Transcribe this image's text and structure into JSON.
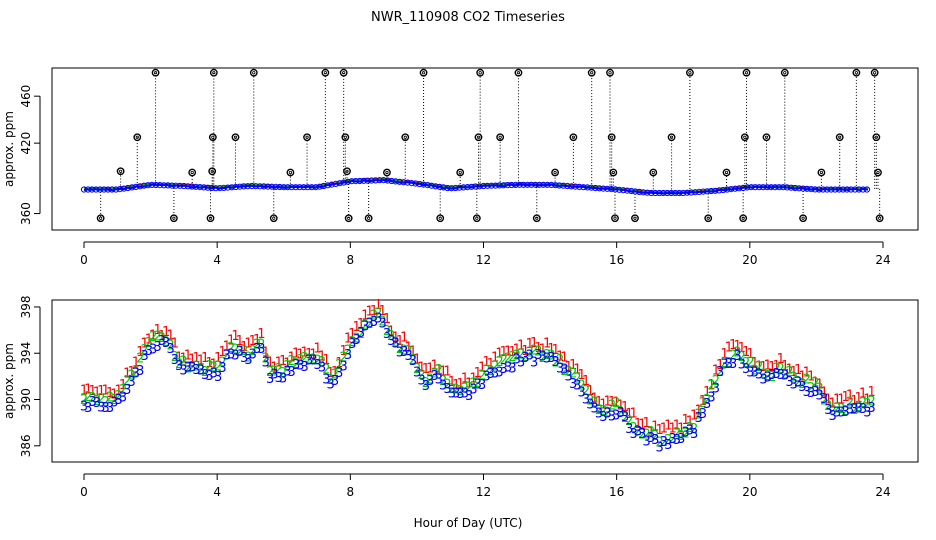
{
  "chart_data": [
    {
      "type": "scatter",
      "title": "NWR_110908  CO2 Timeseries",
      "ylabel": "approx. ppm",
      "xlabel": "",
      "xlim": [
        0,
        24
      ],
      "ylim": [
        346,
        484
      ],
      "x_ticks": [
        0,
        4,
        8,
        12,
        16,
        20,
        24
      ],
      "y_ticks": [
        360,
        420,
        460
      ],
      "series": [
        {
          "name": "1",
          "color": "#ff0000"
        },
        {
          "name": "2",
          "color": "#00cc00"
        },
        {
          "name": "3",
          "color": "#0000ff"
        }
      ],
      "baseline": [
        [
          0,
          381
        ],
        [
          1,
          381
        ],
        [
          1.5,
          383
        ],
        [
          2,
          385
        ],
        [
          3,
          384
        ],
        [
          4,
          382
        ],
        [
          5,
          384
        ],
        [
          6,
          383
        ],
        [
          7,
          383
        ],
        [
          8,
          388
        ],
        [
          9,
          389
        ],
        [
          10,
          386
        ],
        [
          11,
          382
        ],
        [
          12,
          384
        ],
        [
          13,
          385
        ],
        [
          14,
          385
        ],
        [
          15,
          383
        ],
        [
          16,
          381
        ],
        [
          17,
          378
        ],
        [
          18,
          378
        ],
        [
          19,
          380
        ],
        [
          20,
          383
        ],
        [
          21,
          383
        ],
        [
          22,
          381
        ],
        [
          23,
          381
        ],
        [
          23.6,
          381
        ]
      ],
      "spikes": [
        [
          0.5,
          356
        ],
        [
          1.1,
          396
        ],
        [
          1.6,
          425
        ],
        [
          2.15,
          480
        ],
        [
          2.7,
          356
        ],
        [
          3.25,
          395
        ],
        [
          3.8,
          356
        ],
        [
          3.85,
          396
        ],
        [
          3.87,
          425
        ],
        [
          3.9,
          480
        ],
        [
          4.55,
          425
        ],
        [
          5.1,
          480
        ],
        [
          5.7,
          356
        ],
        [
          6.2,
          395
        ],
        [
          6.7,
          425
        ],
        [
          7.25,
          480
        ],
        [
          7.8,
          480
        ],
        [
          7.85,
          425
        ],
        [
          7.9,
          396
        ],
        [
          7.95,
          356
        ],
        [
          8.55,
          356
        ],
        [
          9.1,
          395
        ],
        [
          9.65,
          425
        ],
        [
          10.2,
          480
        ],
        [
          10.7,
          356
        ],
        [
          11.3,
          395
        ],
        [
          11.8,
          356
        ],
        [
          11.85,
          425
        ],
        [
          11.9,
          480
        ],
        [
          12.5,
          425
        ],
        [
          13.05,
          480
        ],
        [
          13.6,
          356
        ],
        [
          14.15,
          395
        ],
        [
          14.7,
          425
        ],
        [
          15.25,
          480
        ],
        [
          15.8,
          480
        ],
        [
          15.85,
          425
        ],
        [
          15.9,
          395
        ],
        [
          15.95,
          356
        ],
        [
          16.55,
          356
        ],
        [
          17.1,
          395
        ],
        [
          17.65,
          425
        ],
        [
          18.2,
          480
        ],
        [
          18.75,
          356
        ],
        [
          19.3,
          395
        ],
        [
          19.8,
          356
        ],
        [
          19.85,
          425
        ],
        [
          19.9,
          480
        ],
        [
          20.5,
          425
        ],
        [
          21.05,
          480
        ],
        [
          21.6,
          356
        ],
        [
          22.15,
          395
        ],
        [
          22.7,
          425
        ],
        [
          23.2,
          480
        ],
        [
          23.75,
          480
        ],
        [
          23.8,
          425
        ],
        [
          23.85,
          395
        ],
        [
          23.9,
          356
        ]
      ]
    },
    {
      "type": "scatter",
      "title": "",
      "ylabel": "approx. ppm",
      "xlabel": "Hour of Day (UTC)",
      "xlim": [
        0,
        24
      ],
      "ylim": [
        384.6,
        398.6
      ],
      "x_ticks": [
        0,
        4,
        8,
        12,
        16,
        20,
        24
      ],
      "y_ticks": [
        386,
        390,
        394,
        398
      ],
      "series": [
        {
          "name": "1",
          "color": "#ff0000",
          "offset": 0.9
        },
        {
          "name": "2",
          "color": "#00cc00",
          "offset": 0.25
        },
        {
          "name": "3",
          "color": "#0000ff",
          "offset": -0.2
        }
      ],
      "base_curve": [
        [
          0,
          389.5
        ],
        [
          0.5,
          389.3
        ],
        [
          1,
          389.6
        ],
        [
          1.5,
          391.5
        ],
        [
          2,
          394.5
        ],
        [
          2.5,
          394.6
        ],
        [
          2.9,
          392.5
        ],
        [
          3.5,
          392.2
        ],
        [
          4,
          392
        ],
        [
          4.3,
          393.5
        ],
        [
          4.6,
          394
        ],
        [
          5,
          393.2
        ],
        [
          5.3,
          394.5
        ],
        [
          5.6,
          391.8
        ],
        [
          6,
          392
        ],
        [
          6.5,
          392.8
        ],
        [
          7,
          393
        ],
        [
          7.5,
          391
        ],
        [
          8,
          394.3
        ],
        [
          8.5,
          396
        ],
        [
          8.9,
          396.8
        ],
        [
          9.3,
          394.5
        ],
        [
          9.8,
          393.5
        ],
        [
          10.2,
          391
        ],
        [
          10.6,
          391.8
        ],
        [
          11.2,
          390
        ],
        [
          11.6,
          390.5
        ],
        [
          12,
          391.5
        ],
        [
          12.5,
          392.5
        ],
        [
          13,
          393
        ],
        [
          13.5,
          393.4
        ],
        [
          14,
          393.3
        ],
        [
          14.5,
          392
        ],
        [
          15,
          390.5
        ],
        [
          15.5,
          388.5
        ],
        [
          16,
          388.8
        ],
        [
          16.4,
          387.5
        ],
        [
          16.8,
          386.5
        ],
        [
          17.3,
          386
        ],
        [
          17.8,
          386.3
        ],
        [
          18.3,
          387
        ],
        [
          18.8,
          390
        ],
        [
          19.2,
          392.5
        ],
        [
          19.6,
          393.5
        ],
        [
          20,
          392.5
        ],
        [
          20.5,
          391.5
        ],
        [
          21,
          392
        ],
        [
          21.5,
          391
        ],
        [
          22,
          390.5
        ],
        [
          22.5,
          388.5
        ],
        [
          23,
          388.8
        ],
        [
          23.5,
          389
        ],
        [
          23.7,
          389.4
        ]
      ]
    }
  ]
}
